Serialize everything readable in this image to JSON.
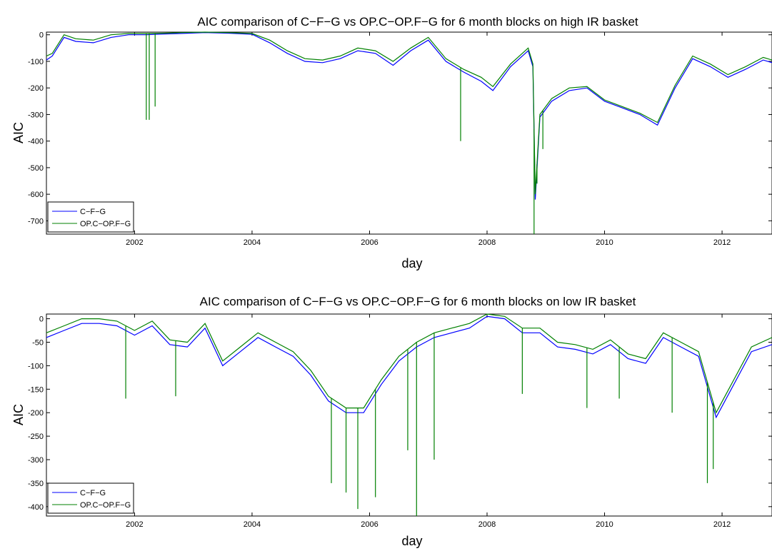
{
  "chart_data": [
    {
      "type": "line",
      "title": "AIC comparison of C−F−G vs OP.C−OP.F−G for 6 month blocks on high IR basket",
      "xlabel": "day",
      "ylabel": "AIC",
      "xlim": [
        2000.5,
        2012.85
      ],
      "ylim": [
        -750,
        10
      ],
      "xticks": [
        2002,
        2004,
        2006,
        2008,
        2010,
        2012
      ],
      "yticks": [
        0,
        -100,
        -200,
        -300,
        -400,
        -500,
        -600,
        -700
      ],
      "legend": "bottom-left",
      "grid": false,
      "series": [
        {
          "name": "C−F−G",
          "color": "#0000ff",
          "x": [
            2000.5,
            2000.6,
            2000.8,
            2001.0,
            2001.3,
            2001.6,
            2001.9,
            2002.2,
            2002.5,
            2002.8,
            2003.2,
            2003.6,
            2004.0,
            2004.3,
            2004.6,
            2004.9,
            2005.2,
            2005.5,
            2005.8,
            2006.1,
            2006.4,
            2006.7,
            2007.0,
            2007.3,
            2007.6,
            2007.9,
            2008.1,
            2008.4,
            2008.7,
            2008.78,
            2008.82,
            2008.9,
            2009.1,
            2009.4,
            2009.7,
            2010.0,
            2010.3,
            2010.6,
            2010.9,
            2011.2,
            2011.5,
            2011.8,
            2012.1,
            2012.4,
            2012.7,
            2012.85
          ],
          "values": [
            -95,
            -80,
            -10,
            -25,
            -30,
            -10,
            0,
            0,
            3,
            5,
            8,
            6,
            2,
            -30,
            -70,
            -100,
            -105,
            -90,
            -60,
            -70,
            -115,
            -60,
            -20,
            -100,
            -140,
            -175,
            -210,
            -120,
            -60,
            -120,
            -620,
            -310,
            -250,
            -210,
            -200,
            -250,
            -275,
            -300,
            -340,
            -200,
            -90,
            -120,
            -160,
            -130,
            -95,
            -105
          ]
        },
        {
          "name": "OP.C−OP.F−G",
          "color": "#008000",
          "x": [
            2000.5,
            2000.6,
            2000.8,
            2001.0,
            2001.3,
            2001.6,
            2001.9,
            2002.2,
            2002.5,
            2002.8,
            2003.2,
            2003.6,
            2004.0,
            2004.3,
            2004.6,
            2004.9,
            2005.2,
            2005.5,
            2005.8,
            2006.1,
            2006.4,
            2006.7,
            2007.0,
            2007.3,
            2007.6,
            2007.9,
            2008.1,
            2008.4,
            2008.7,
            2008.78,
            2008.82,
            2008.9,
            2009.1,
            2009.4,
            2009.7,
            2010.0,
            2010.3,
            2010.6,
            2010.9,
            2011.2,
            2011.5,
            2011.8,
            2012.1,
            2012.4,
            2012.7,
            2012.85
          ],
          "values": [
            -80,
            -70,
            0,
            -15,
            -20,
            0,
            5,
            5,
            6,
            8,
            10,
            8,
            5,
            -20,
            -60,
            -90,
            -95,
            -80,
            -50,
            -60,
            -100,
            -50,
            -10,
            -90,
            -130,
            -160,
            -195,
            -110,
            -50,
            -110,
            -600,
            -300,
            -240,
            -200,
            -195,
            -245,
            -270,
            -295,
            -330,
            -190,
            -80,
            -110,
            -150,
            -120,
            -85,
            -95
          ]
        }
      ],
      "spikes": [
        {
          "x": 2002.2,
          "values": [
            -320
          ]
        },
        {
          "x": 2002.25,
          "values": [
            -320
          ]
        },
        {
          "x": 2002.35,
          "values": [
            -270
          ]
        },
        {
          "x": 2007.55,
          "values": [
            -400
          ]
        },
        {
          "x": 2008.8,
          "values": [
            -750
          ]
        },
        {
          "x": 2008.85,
          "values": [
            -560
          ]
        },
        {
          "x": 2008.95,
          "values": [
            -430
          ]
        }
      ]
    },
    {
      "type": "line",
      "title": "AIC comparison of C−F−G vs OP.C−OP.F−G for 6 month blocks on low IR basket",
      "xlabel": "day",
      "ylabel": "AIC",
      "xlim": [
        2000.5,
        2012.85
      ],
      "ylim": [
        -420,
        10
      ],
      "xticks": [
        2002,
        2004,
        2006,
        2008,
        2010,
        2012
      ],
      "yticks": [
        0,
        -50,
        -100,
        -150,
        -200,
        -250,
        -300,
        -350,
        -400
      ],
      "legend": "bottom-left",
      "grid": false,
      "series": [
        {
          "name": "C−F−G",
          "color": "#0000ff",
          "x": [
            2000.5,
            2000.8,
            2001.1,
            2001.4,
            2001.7,
            2002.0,
            2002.3,
            2002.6,
            2002.9,
            2003.2,
            2003.5,
            2003.8,
            2004.1,
            2004.4,
            2004.7,
            2005.0,
            2005.3,
            2005.6,
            2005.9,
            2006.2,
            2006.5,
            2006.8,
            2007.1,
            2007.4,
            2007.7,
            2008.0,
            2008.3,
            2008.6,
            2008.9,
            2009.2,
            2009.5,
            2009.8,
            2010.1,
            2010.4,
            2010.7,
            2011.0,
            2011.3,
            2011.6,
            2011.9,
            2012.2,
            2012.5,
            2012.85
          ],
          "values": [
            -40,
            -25,
            -10,
            -10,
            -15,
            -35,
            -15,
            -55,
            -60,
            -20,
            -100,
            -70,
            -40,
            -60,
            -80,
            -120,
            -175,
            -200,
            -200,
            -140,
            -90,
            -60,
            -40,
            -30,
            -20,
            5,
            0,
            -30,
            -30,
            -60,
            -65,
            -75,
            -55,
            -85,
            -95,
            -40,
            -60,
            -80,
            -210,
            -140,
            -70,
            -55
          ]
        },
        {
          "name": "OP.C−OP.F−G",
          "color": "#008000",
          "x": [
            2000.5,
            2000.8,
            2001.1,
            2001.4,
            2001.7,
            2002.0,
            2002.3,
            2002.6,
            2002.9,
            2003.2,
            2003.5,
            2003.8,
            2004.1,
            2004.4,
            2004.7,
            2005.0,
            2005.3,
            2005.6,
            2005.9,
            2006.2,
            2006.5,
            2006.8,
            2007.1,
            2007.4,
            2007.7,
            2008.0,
            2008.3,
            2008.6,
            2008.9,
            2009.2,
            2009.5,
            2009.8,
            2010.1,
            2010.4,
            2010.7,
            2011.0,
            2011.3,
            2011.6,
            2011.9,
            2012.2,
            2012.5,
            2012.85
          ],
          "values": [
            -30,
            -15,
            0,
            0,
            -5,
            -25,
            -5,
            -45,
            -50,
            -10,
            -90,
            -60,
            -30,
            -50,
            -70,
            -110,
            -165,
            -190,
            -190,
            -130,
            -80,
            -50,
            -30,
            -20,
            -10,
            10,
            5,
            -20,
            -20,
            -50,
            -55,
            -65,
            -45,
            -75,
            -85,
            -30,
            -50,
            -70,
            -200,
            -130,
            -60,
            -40
          ]
        }
      ],
      "spikes": [
        {
          "x": 2001.85,
          "values": [
            -170
          ]
        },
        {
          "x": 2002.7,
          "values": [
            -165
          ]
        },
        {
          "x": 2005.35,
          "values": [
            -350
          ]
        },
        {
          "x": 2005.6,
          "values": [
            -370
          ]
        },
        {
          "x": 2005.8,
          "values": [
            -405
          ]
        },
        {
          "x": 2006.1,
          "values": [
            -380
          ]
        },
        {
          "x": 2006.65,
          "values": [
            -280
          ]
        },
        {
          "x": 2006.8,
          "values": [
            -420
          ]
        },
        {
          "x": 2007.1,
          "values": [
            -300
          ]
        },
        {
          "x": 2008.6,
          "values": [
            -160
          ]
        },
        {
          "x": 2009.7,
          "values": [
            -190
          ]
        },
        {
          "x": 2010.25,
          "values": [
            -170
          ]
        },
        {
          "x": 2011.15,
          "values": [
            -200
          ]
        },
        {
          "x": 2011.75,
          "values": [
            -350
          ]
        },
        {
          "x": 2011.85,
          "values": [
            -320
          ]
        }
      ]
    }
  ]
}
